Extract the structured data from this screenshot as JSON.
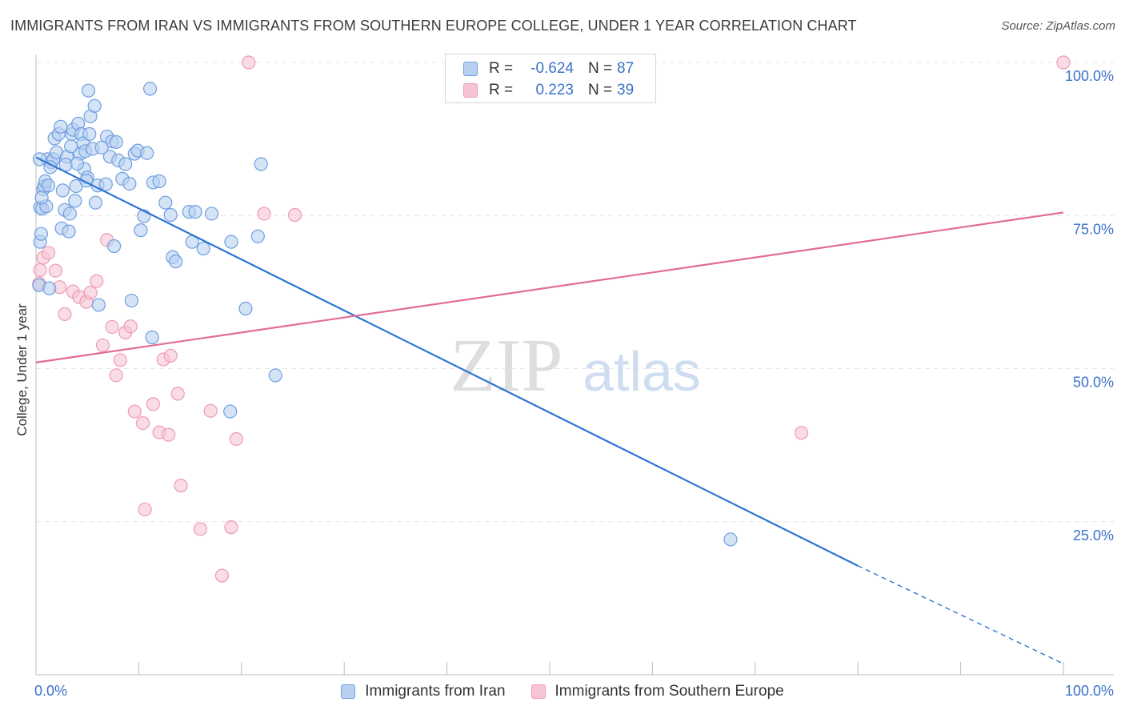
{
  "title": "IMMIGRANTS FROM IRAN VS IMMIGRANTS FROM SOUTHERN EUROPE COLLEGE, UNDER 1 YEAR CORRELATION CHART",
  "source": "Source: ZipAtlas.com",
  "watermark": {
    "zip": "ZIP",
    "atlas": "atlas"
  },
  "legend_top": {
    "rows": [
      {
        "r_label": "R =",
        "r_value": "-0.624",
        "n_label": "N =",
        "n_value": "87"
      },
      {
        "r_label": "R =",
        "r_value": "0.223",
        "n_label": "N =",
        "n_value": "39"
      }
    ]
  },
  "legend_bottom": {
    "iran": "Immigrants from Iran",
    "southern_europe": "Immigrants from Southern Europe"
  },
  "colors": {
    "iran_fill": "#b8d0f0",
    "iran_stroke": "#6f9fe0",
    "iran_line": "#2f75d4",
    "se_fill": "#f6c4d4",
    "se_stroke": "#ee9ab5",
    "se_line": "#e26c97",
    "tick_label": "#3a72c9",
    "grid": "#e6e6e6"
  },
  "chart_data": {
    "type": "scatter",
    "title": "IMMIGRANTS FROM IRAN VS IMMIGRANTS FROM SOUTHERN EUROPE COLLEGE, UNDER 1 YEAR CORRELATION CHART",
    "xlabel": "",
    "ylabel": "College, Under 1 year",
    "xlim": [
      0,
      100
    ],
    "ylim": [
      0,
      103
    ],
    "x_tick_labels": [
      "0.0%",
      "100.0%"
    ],
    "y_ticks": [
      25,
      50,
      75,
      100
    ],
    "y_tick_labels": [
      "25.0%",
      "50.0%",
      "75.0%",
      "100.0%"
    ],
    "grid": true,
    "series": [
      {
        "name": "Immigrants from Iran",
        "points": [
          [
            0.3,
            63.6
          ],
          [
            0.4,
            70.7
          ],
          [
            0.4,
            76.3
          ],
          [
            0.5,
            72.0
          ],
          [
            0.6,
            76.1
          ],
          [
            0.7,
            79.3
          ],
          [
            0.8,
            79.8
          ],
          [
            0.9,
            80.6
          ],
          [
            1.0,
            76.5
          ],
          [
            1.1,
            84.2
          ],
          [
            1.2,
            79.9
          ],
          [
            1.3,
            63.1
          ],
          [
            1.5,
            83.7
          ],
          [
            1.7,
            84.2
          ],
          [
            1.8,
            87.6
          ],
          [
            2.0,
            85.3
          ],
          [
            2.2,
            88.3
          ],
          [
            2.4,
            89.5
          ],
          [
            2.5,
            72.9
          ],
          [
            2.6,
            79.1
          ],
          [
            2.8,
            75.9
          ],
          [
            3.0,
            84.6
          ],
          [
            3.2,
            72.4
          ],
          [
            3.3,
            75.3
          ],
          [
            3.5,
            88.3
          ],
          [
            3.6,
            89.0
          ],
          [
            3.8,
            77.4
          ],
          [
            3.9,
            79.8
          ],
          [
            4.1,
            90.0
          ],
          [
            4.3,
            85.1
          ],
          [
            4.4,
            88.3
          ],
          [
            4.6,
            86.8
          ],
          [
            4.7,
            82.6
          ],
          [
            4.8,
            85.5
          ],
          [
            5.0,
            81.2
          ],
          [
            5.1,
            95.4
          ],
          [
            5.2,
            88.3
          ],
          [
            5.3,
            91.2
          ],
          [
            5.5,
            85.9
          ],
          [
            5.7,
            92.9
          ],
          [
            5.8,
            77.1
          ],
          [
            6.0,
            79.9
          ],
          [
            6.1,
            60.4
          ],
          [
            6.8,
            80.1
          ],
          [
            6.9,
            87.9
          ],
          [
            7.2,
            84.6
          ],
          [
            7.4,
            87.1
          ],
          [
            7.6,
            70.0
          ],
          [
            7.8,
            87.0
          ],
          [
            8.0,
            84.0
          ],
          [
            8.4,
            81.0
          ],
          [
            8.7,
            83.4
          ],
          [
            9.3,
            61.1
          ],
          [
            9.6,
            85.1
          ],
          [
            9.9,
            85.6
          ],
          [
            10.2,
            72.6
          ],
          [
            10.5,
            74.9
          ],
          [
            10.8,
            85.2
          ],
          [
            11.1,
            95.7
          ],
          [
            11.3,
            55.1
          ],
          [
            11.4,
            80.4
          ],
          [
            12.0,
            80.6
          ],
          [
            12.6,
            77.1
          ],
          [
            13.1,
            75.1
          ],
          [
            13.3,
            68.2
          ],
          [
            13.6,
            67.5
          ],
          [
            14.9,
            75.6
          ],
          [
            15.2,
            70.7
          ],
          [
            15.5,
            75.6
          ],
          [
            16.3,
            69.6
          ],
          [
            17.1,
            75.3
          ],
          [
            19.0,
            70.7
          ],
          [
            20.4,
            59.8
          ],
          [
            21.6,
            71.6
          ],
          [
            21.9,
            83.4
          ],
          [
            23.3,
            48.9
          ],
          [
            0.35,
            84.2
          ],
          [
            0.55,
            77.9
          ],
          [
            1.4,
            82.9
          ],
          [
            2.9,
            83.3
          ],
          [
            3.4,
            86.3
          ],
          [
            4.0,
            83.5
          ],
          [
            4.9,
            80.7
          ],
          [
            6.4,
            86.1
          ],
          [
            9.1,
            80.2
          ],
          [
            18.9,
            43.0
          ],
          [
            67.6,
            22.1
          ]
        ]
      },
      {
        "name": "Immigrants from Southern Europe",
        "points": [
          [
            0.3,
            63.9
          ],
          [
            0.4,
            66.1
          ],
          [
            0.7,
            68.1
          ],
          [
            1.2,
            68.9
          ],
          [
            1.9,
            66.0
          ],
          [
            2.3,
            63.3
          ],
          [
            2.8,
            58.9
          ],
          [
            3.6,
            62.6
          ],
          [
            4.2,
            61.7
          ],
          [
            4.9,
            60.9
          ],
          [
            5.3,
            62.4
          ],
          [
            5.9,
            64.3
          ],
          [
            6.5,
            53.8
          ],
          [
            6.9,
            71.0
          ],
          [
            7.4,
            56.8
          ],
          [
            7.8,
            48.9
          ],
          [
            8.2,
            51.4
          ],
          [
            8.7,
            55.9
          ],
          [
            9.2,
            56.9
          ],
          [
            9.6,
            43.0
          ],
          [
            10.4,
            41.1
          ],
          [
            10.6,
            27.0
          ],
          [
            11.4,
            44.2
          ],
          [
            12.0,
            39.6
          ],
          [
            12.4,
            51.5
          ],
          [
            12.9,
            39.2
          ],
          [
            13.1,
            52.1
          ],
          [
            13.8,
            45.9
          ],
          [
            14.1,
            30.9
          ],
          [
            16.0,
            23.8
          ],
          [
            17.0,
            43.1
          ],
          [
            18.1,
            16.2
          ],
          [
            19.0,
            24.1
          ],
          [
            19.5,
            38.5
          ],
          [
            20.7,
            100.0
          ],
          [
            22.2,
            75.3
          ],
          [
            25.2,
            75.1
          ],
          [
            74.5,
            39.5
          ],
          [
            100.0,
            100.0
          ]
        ]
      }
    ],
    "trend_lines": [
      {
        "series": "Immigrants from Iran",
        "x": [
          0,
          80,
          100
        ],
        "y": [
          84.5,
          17.8,
          1.8
        ]
      },
      {
        "series": "Immigrants from Southern Europe",
        "x": [
          0,
          100
        ],
        "y": [
          51.0,
          75.5
        ]
      }
    ]
  }
}
